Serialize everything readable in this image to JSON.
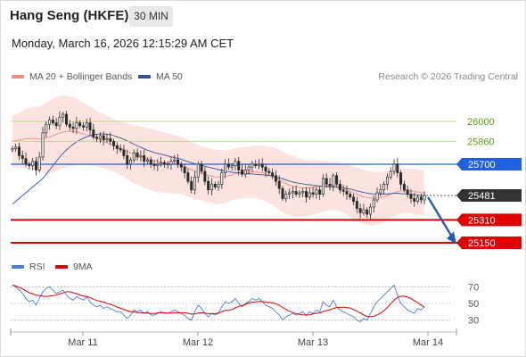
{
  "header": {
    "title": "Hang Seng (HKFE)",
    "timeframe": "30 MIN",
    "datetime": "Monday, March 16, 2026 12:15:29 AM CET"
  },
  "legend": {
    "ma20_label": "MA 20 + Bollinger Bands",
    "ma20_color": "#f28b82",
    "ma50_label": "MA 50",
    "ma50_color": "#2f5597",
    "credit": "Research © 2026 Trading Central"
  },
  "rsi_legend": {
    "rsi_label": "RSI",
    "rsi_color": "#4a7bd8",
    "ma9_label": "9MA",
    "ma9_color": "#e00000"
  },
  "levels": [
    {
      "label": "26000",
      "value": 26000,
      "style": "resistance-light",
      "color": "#5a9e1a"
    },
    {
      "label": "25860",
      "value": 25860,
      "style": "resistance-light",
      "color": "#5a9e1a"
    },
    {
      "label": "25700",
      "value": 25700,
      "style": "pivot",
      "color": "#1f5fe0"
    },
    {
      "label": "25481",
      "value": 25481,
      "style": "last-price",
      "color": "#333333"
    },
    {
      "label": "25310",
      "value": 25310,
      "style": "support",
      "color": "#e00000"
    },
    {
      "label": "25150",
      "value": 25150,
      "style": "support",
      "color": "#e00000"
    }
  ],
  "x_axis": [
    "Mar 11",
    "Mar 12",
    "Mar 13",
    "Mar 14"
  ],
  "rsi_axis": [
    "70",
    "50",
    "30"
  ],
  "chart_data": {
    "type": "candlestick",
    "price_range": [
      25150,
      26100
    ],
    "rsi_range": [
      20,
      80
    ],
    "close": [
      25810,
      25820,
      25760,
      25740,
      25700,
      25690,
      25720,
      25660,
      25750,
      25920,
      25980,
      26010,
      25990,
      25970,
      26030,
      26050,
      25980,
      25960,
      25950,
      25990,
      25970,
      25960,
      25990,
      25940,
      25890,
      25880,
      25900,
      25870,
      25880,
      25860,
      25830,
      25810,
      25800,
      25760,
      25700,
      25730,
      25780,
      25750,
      25760,
      25720,
      25730,
      25700,
      25690,
      25700,
      25710,
      25700,
      25700,
      25720,
      25730,
      25700,
      25680,
      25640,
      25580,
      25520,
      25610,
      25700,
      25650,
      25580,
      25520,
      25560,
      25540,
      25560,
      25640,
      25700,
      25680,
      25690,
      25720,
      25660,
      25630,
      25660,
      25680,
      25700,
      25690,
      25700,
      25680,
      25650,
      25640,
      25620,
      25580,
      25530,
      25460,
      25490,
      25500,
      25510,
      25490,
      25500,
      25510,
      25470,
      25500,
      25490,
      25520,
      25490,
      25600,
      25560,
      25550,
      25620,
      25560,
      25520,
      25510,
      25490,
      25470,
      25440,
      25390,
      25360,
      25380,
      25350,
      25400,
      25450,
      25500,
      25520,
      25560,
      25610,
      25650,
      25700,
      25640,
      25560,
      25520,
      25490,
      25460,
      25440,
      25470,
      25450,
      25481
    ],
    "open": [
      25800,
      25810,
      25820,
      25760,
      25740,
      25700,
      25690,
      25720,
      25660,
      25750,
      25920,
      25980,
      26010,
      25990,
      25970,
      26030,
      26050,
      25980,
      25960,
      25950,
      25990,
      25970,
      25960,
      25990,
      25940,
      25890,
      25880,
      25900,
      25870,
      25880,
      25860,
      25830,
      25810,
      25800,
      25760,
      25700,
      25730,
      25780,
      25750,
      25760,
      25720,
      25730,
      25700,
      25690,
      25700,
      25710,
      25700,
      25700,
      25720,
      25730,
      25700,
      25680,
      25640,
      25580,
      25520,
      25610,
      25700,
      25650,
      25580,
      25520,
      25560,
      25540,
      25560,
      25640,
      25700,
      25680,
      25690,
      25720,
      25660,
      25630,
      25660,
      25680,
      25700,
      25690,
      25700,
      25680,
      25650,
      25640,
      25620,
      25580,
      25530,
      25460,
      25490,
      25500,
      25510,
      25490,
      25500,
      25510,
      25470,
      25500,
      25490,
      25520,
      25490,
      25600,
      25560,
      25550,
      25620,
      25560,
      25520,
      25510,
      25490,
      25470,
      25440,
      25390,
      25360,
      25380,
      25350,
      25400,
      25450,
      25500,
      25520,
      25560,
      25610,
      25650,
      25700,
      25640,
      25560,
      25520,
      25490,
      25460,
      25440,
      25470,
      25450
    ],
    "rsi": [
      72,
      70,
      66,
      62,
      56,
      52,
      54,
      48,
      56,
      64,
      68,
      70,
      66,
      62,
      64,
      66,
      60,
      56,
      54,
      58,
      56,
      54,
      58,
      52,
      48,
      46,
      48,
      44,
      46,
      44,
      42,
      40,
      40,
      36,
      32,
      36,
      42,
      40,
      42,
      38,
      40,
      36,
      36,
      38,
      40,
      38,
      38,
      40,
      42,
      40,
      38,
      36,
      32,
      30,
      40,
      48,
      44,
      38,
      34,
      38,
      36,
      38,
      46,
      52,
      50,
      52,
      56,
      50,
      46,
      50,
      52,
      56,
      54,
      56,
      52,
      48,
      46,
      44,
      40,
      36,
      30,
      34,
      36,
      38,
      36,
      38,
      40,
      36,
      40,
      38,
      42,
      40,
      52,
      48,
      46,
      54,
      46,
      42,
      40,
      38,
      36,
      34,
      30,
      28,
      32,
      30,
      38,
      46,
      52,
      56,
      60,
      64,
      68,
      72,
      60,
      50,
      46,
      42,
      40,
      38,
      44,
      42,
      46
    ],
    "ma20": [
      25860,
      25865,
      25870,
      25874,
      25878,
      25880,
      25880,
      25878,
      25876,
      25878,
      25884,
      25890,
      25900,
      25910,
      25918,
      25926,
      25930,
      25930,
      25928,
      25926,
      25920,
      25914,
      25906,
      25898,
      25890,
      25880,
      25870,
      25860,
      25850,
      25840,
      25830,
      25822,
      25812,
      25802,
      25790,
      25780,
      25770,
      25762,
      25754,
      25746,
      25740,
      25734,
      25726,
      25720,
      25716,
      25712,
      25708,
      25704,
      25700,
      25696,
      25690,
      25682,
      25672,
      25662,
      25652,
      25644,
      25636,
      25628,
      25622,
      25616,
      25612,
      25610,
      25610,
      25614,
      25620,
      25626,
      25634,
      25638,
      25640,
      25642,
      25644,
      25646,
      25646,
      25644,
      25640,
      25634,
      25626,
      25616,
      25604,
      25590,
      25576,
      25564,
      25554,
      25546,
      25540,
      25536,
      25534,
      25534,
      25536,
      25538,
      25540,
      25542,
      25546,
      25548,
      25548,
      25548,
      25546,
      25540,
      25532,
      25522,
      25512,
      25500,
      25490,
      25480,
      25472,
      25466,
      25462,
      25460,
      25462,
      25466,
      25472,
      25480,
      25490,
      25500,
      25508,
      25512,
      25514,
      25514,
      25512,
      25510,
      25506,
      25502,
      25498
    ],
    "ma50": [
      25420,
      25440,
      25460,
      25480,
      25500,
      25520,
      25540,
      25560,
      25580,
      25600,
      25630,
      25660,
      25690,
      25720,
      25750,
      25776,
      25800,
      25820,
      25840,
      25856,
      25870,
      25882,
      25892,
      25900,
      25906,
      25910,
      25912,
      25912,
      25910,
      25906,
      25900,
      25892,
      25884,
      25874,
      25864,
      25852,
      25840,
      25828,
      25818,
      25808,
      25798,
      25790,
      25782,
      25776,
      25770,
      25764,
      25758,
      25752,
      25746,
      25740,
      25734,
      25726,
      25718,
      25710,
      25704,
      25698,
      25692,
      25686,
      25680,
      25674,
      25668,
      25662,
      25656,
      25652,
      25648,
      25644,
      25642,
      25640,
      25638,
      25636,
      25634,
      25632,
      25630,
      25628,
      25626,
      25624,
      25620,
      25616,
      25610,
      25604,
      25598,
      25590,
      25582,
      25576,
      25570,
      25566,
      25562,
      25558,
      25556,
      25552,
      25550,
      25548,
      25546,
      25544,
      25542,
      25540,
      25538,
      25536,
      25534,
      25530,
      25526,
      25520,
      25514,
      25508,
      25502,
      25498,
      25494,
      25492,
      25490,
      25490,
      25490,
      25492,
      25494,
      25496,
      25496,
      25494,
      25492,
      25490,
      25488,
      25486,
      25484,
      25482,
      25481
    ],
    "bb_width": [
      180,
      185,
      190,
      200,
      210,
      215,
      220,
      225,
      230,
      240,
      250,
      255,
      260,
      260,
      258,
      255,
      250,
      245,
      240,
      232,
      225,
      218,
      210,
      205,
      200,
      195,
      192,
      190,
      188,
      186,
      185,
      186,
      188,
      190,
      195,
      200,
      205,
      208,
      210,
      212,
      214,
      215,
      216,
      215,
      214,
      212,
      210,
      208,
      206,
      204,
      202,
      200,
      198,
      196,
      194,
      192,
      190,
      190,
      190,
      190,
      190,
      188,
      186,
      184,
      182,
      180,
      178,
      178,
      178,
      178,
      180,
      182,
      184,
      186,
      190,
      194,
      198,
      202,
      206,
      210,
      212,
      214,
      214,
      212,
      210,
      206,
      202,
      198,
      194,
      190,
      186,
      182,
      178,
      174,
      172,
      170,
      170,
      170,
      172,
      176,
      180,
      184,
      186,
      188,
      190,
      190,
      188,
      186,
      184,
      180,
      176,
      172,
      168,
      164,
      160,
      158,
      156,
      156,
      156,
      156,
      156,
      156,
      156
    ]
  }
}
